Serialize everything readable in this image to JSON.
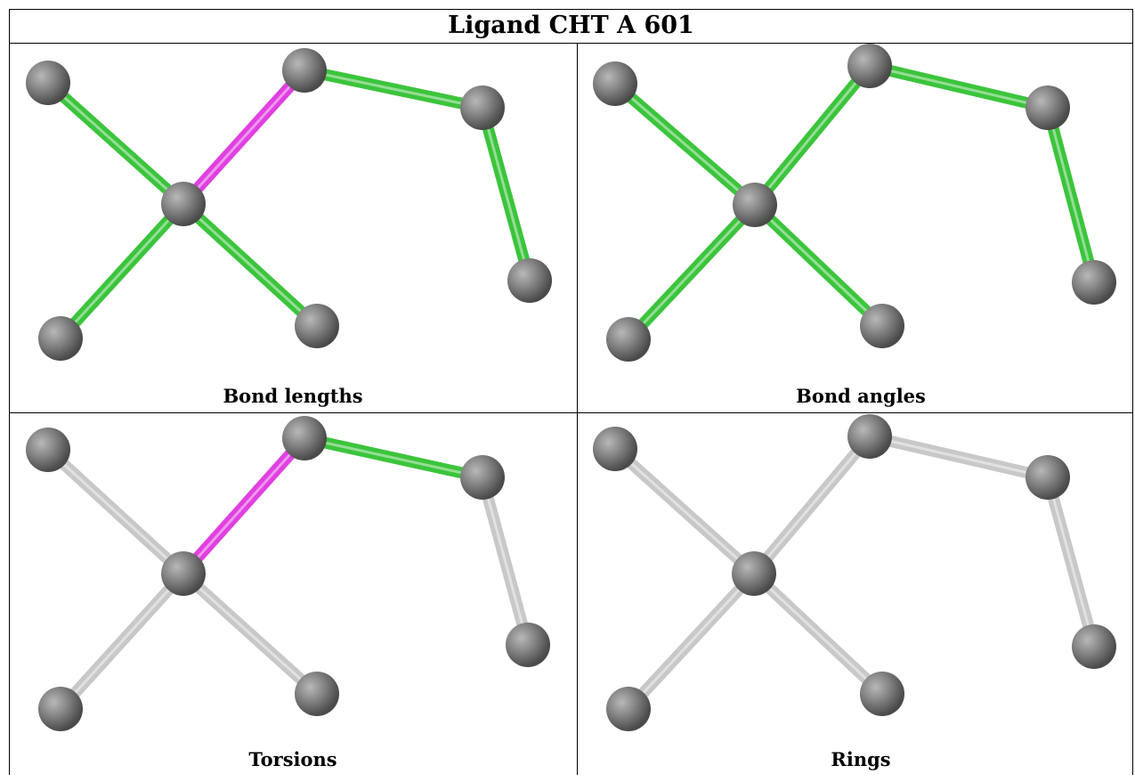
{
  "title": "Ligand CHT A 601",
  "panels": [
    {
      "caption": "Bond lengths",
      "highlight": "magenta",
      "style": "green"
    },
    {
      "caption": "Bond angles",
      "highlight": "none",
      "style": "green"
    },
    {
      "caption": "Torsions",
      "highlight": "magenta",
      "style": "partial"
    },
    {
      "caption": "Rings",
      "highlight": "none",
      "style": "grey"
    }
  ],
  "colors": {
    "green_bond": "#3cc43c",
    "magenta_bond": "#e040e0",
    "grey_bond": "#c8c8c8",
    "atom": "#7a7a7a"
  }
}
